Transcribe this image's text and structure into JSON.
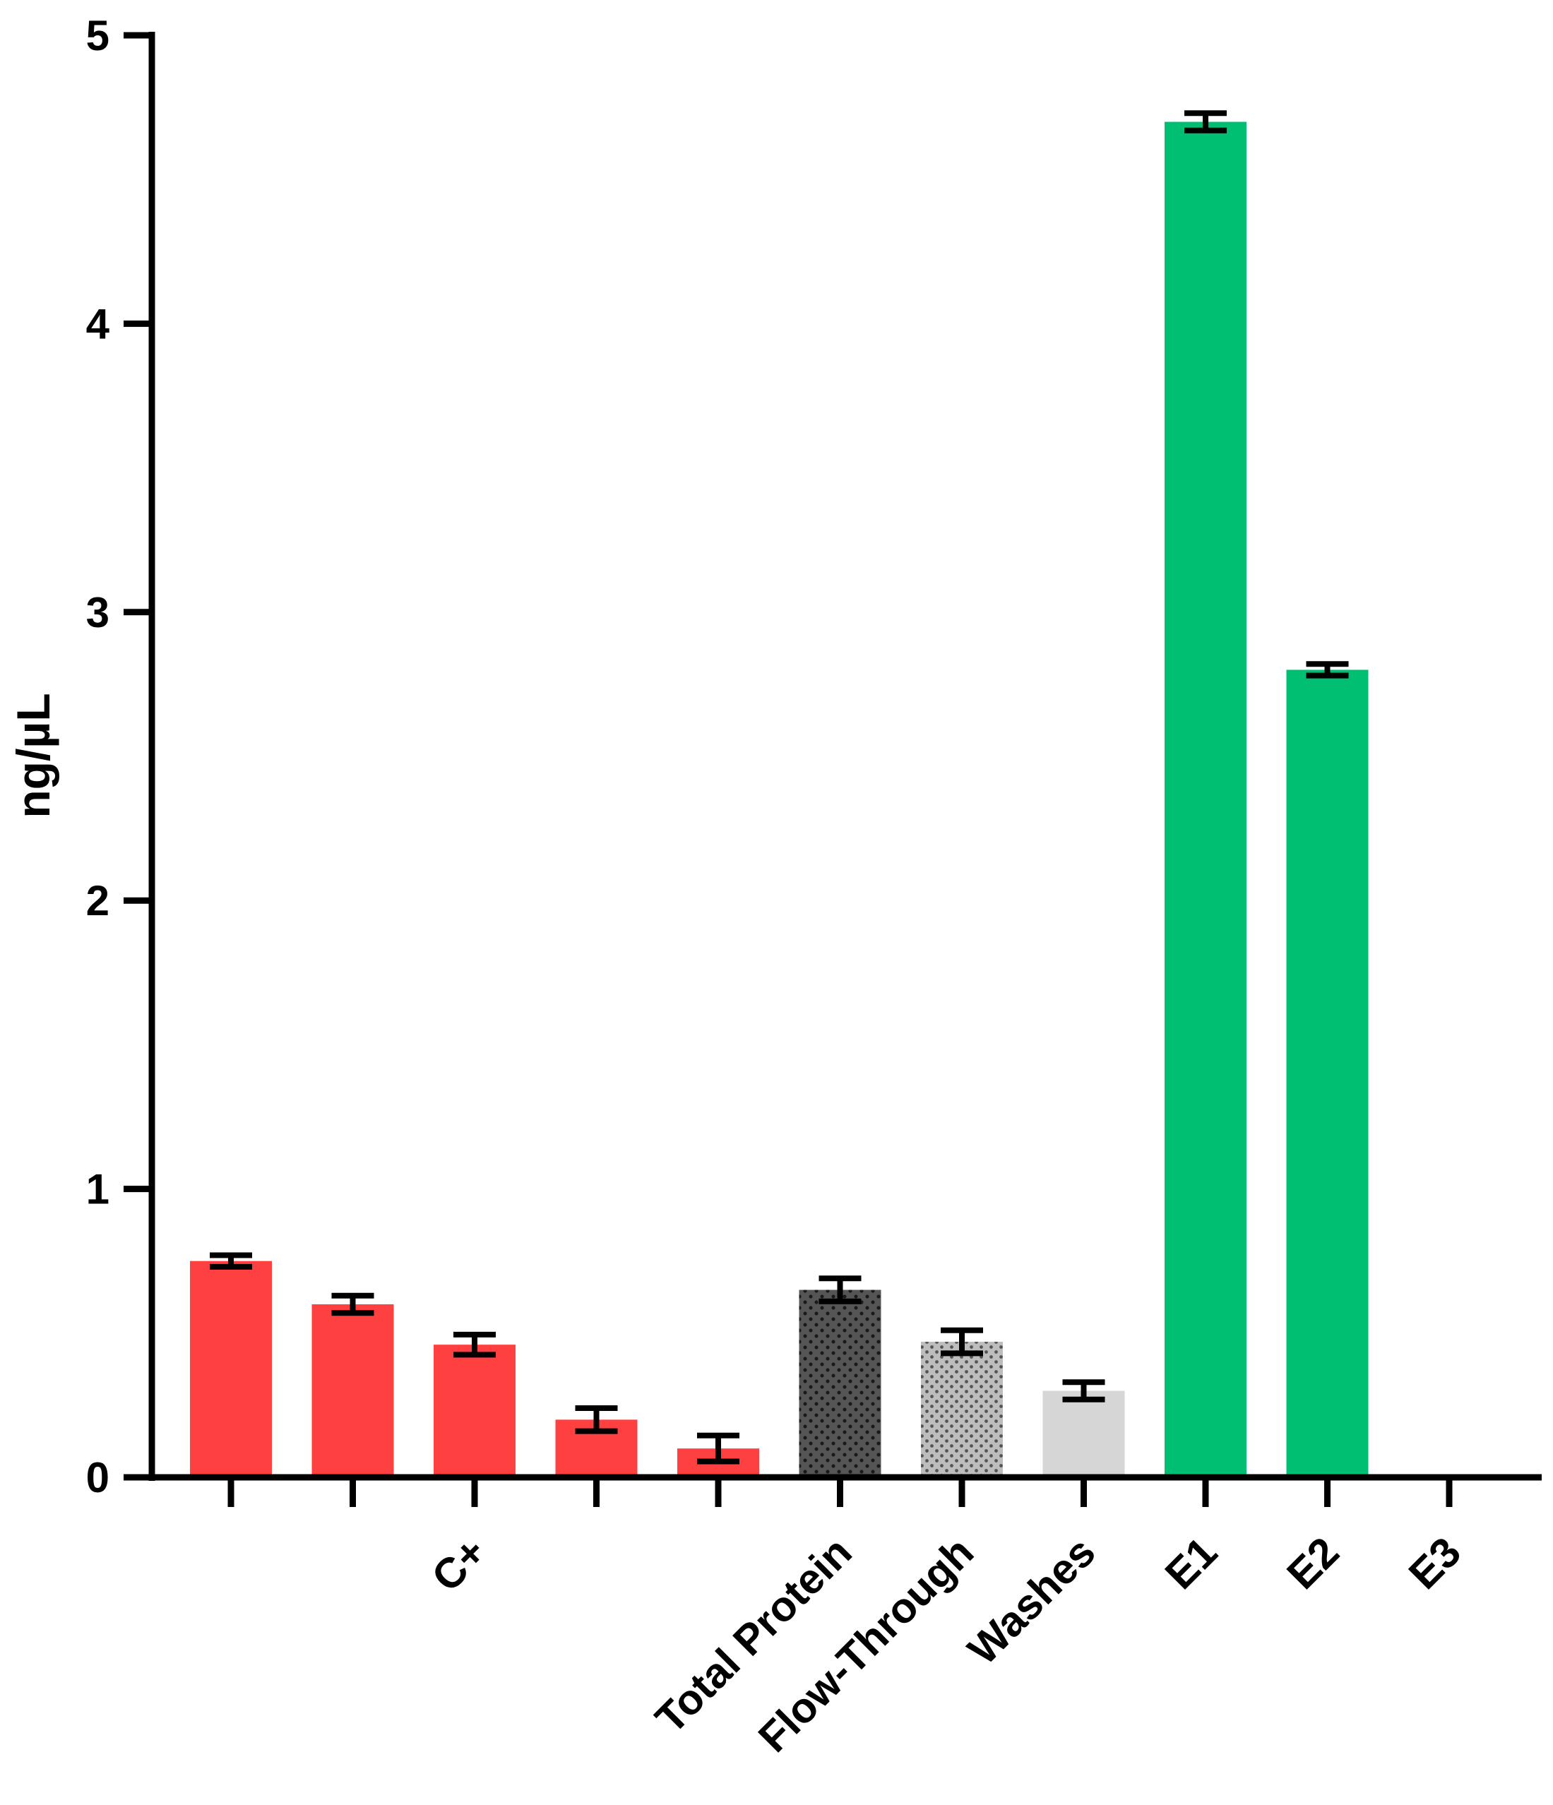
{
  "chart_data": {
    "type": "bar",
    "title": "",
    "xlabel": "",
    "ylabel": "ng/µL",
    "ylim": [
      0,
      5
    ],
    "yticks": [
      0,
      1,
      2,
      3,
      4,
      5
    ],
    "grid": false,
    "legend": "none",
    "categories": [
      "",
      "",
      "C+",
      "",
      "",
      "Total Protein",
      "Flow-Through",
      "Washes",
      "E1",
      "E2",
      "E3"
    ],
    "values": [
      0.75,
      0.6,
      0.46,
      0.2,
      0.1,
      0.65,
      0.47,
      0.3,
      4.7,
      2.8,
      0
    ],
    "errors": [
      0.02,
      0.03,
      0.035,
      0.04,
      0.045,
      0.04,
      0.04,
      0.03,
      0.03,
      0.02,
      0
    ],
    "fills": [
      "solid",
      "solid",
      "solid",
      "solid",
      "solid",
      "dense-dots",
      "sparse-dots",
      "solid",
      "solid",
      "solid",
      "solid"
    ],
    "colors": [
      "#ff4040",
      "#ff4040",
      "#ff4040",
      "#ff4040",
      "#ff4040",
      "#555555",
      "#b5b5b5",
      "#d6d6d6",
      "#00bf73",
      "#00bf73",
      "#00bf73"
    ]
  }
}
